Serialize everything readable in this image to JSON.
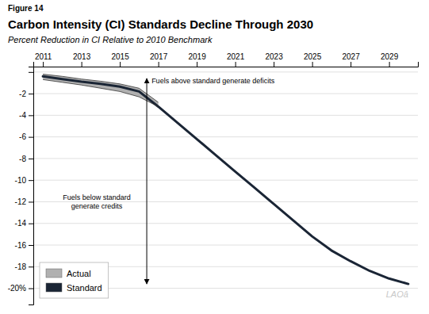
{
  "chart_data": {
    "type": "line",
    "title": "Carbon Intensity (CI) Standards Decline Through 2030",
    "subtitle": "Percent Reduction in CI Relative to 2010 Benchmark",
    "figure_label": "Figure 14",
    "watermark": "LAOâ",
    "xlim": [
      2010.5,
      2030.5
    ],
    "xticks": [
      2011,
      2013,
      2015,
      2017,
      2019,
      2021,
      2023,
      2025,
      2027,
      2029
    ],
    "ylim": [
      -21.5,
      0.5
    ],
    "yticks": [
      {
        "value": 0,
        "label": null
      },
      -2,
      -4,
      -6,
      -8,
      -10,
      -12,
      -14,
      -16,
      -18,
      {
        "value": -20,
        "label": "-20%"
      }
    ],
    "grid": "y",
    "legend": "lower left",
    "series": [
      {
        "name": "Actual",
        "type": "area",
        "color": "#b0b0b0",
        "x": [
          2011,
          2012,
          2013,
          2014,
          2015,
          2016,
          2017
        ],
        "values": [
          -0.2,
          -0.4,
          -0.65,
          -0.85,
          -1.1,
          -1.5,
          -2.8
        ],
        "lower": [
          -0.7,
          -0.95,
          -1.2,
          -1.5,
          -1.8,
          -2.3,
          -3.2
        ]
      },
      {
        "name": "Standard",
        "type": "line",
        "color": "#1a2535",
        "x": [
          2011,
          2012,
          2013,
          2014,
          2015,
          2016,
          2017,
          2018,
          2019,
          2020,
          2021,
          2022,
          2023,
          2024,
          2025,
          2026,
          2027,
          2028,
          2029,
          2030
        ],
        "values": [
          -0.4,
          -0.65,
          -0.9,
          -1.1,
          -1.35,
          -1.8,
          -3.2,
          -4.7,
          -6.2,
          -7.7,
          -9.2,
          -10.7,
          -12.2,
          -13.7,
          -15.2,
          -16.5,
          -17.5,
          -18.4,
          -19.1,
          -19.6
        ]
      }
    ],
    "annotations": [
      {
        "text": "Fuels above standard generate deficits",
        "x": 2016.65,
        "y": -0.55
      },
      {
        "text": "Fuels below standard\ngenerate credits",
        "x": 2013.8,
        "y": -12.0
      },
      {
        "x": 2016.4,
        "y_start": -0.6,
        "y_end": -19.6
      }
    ]
  }
}
